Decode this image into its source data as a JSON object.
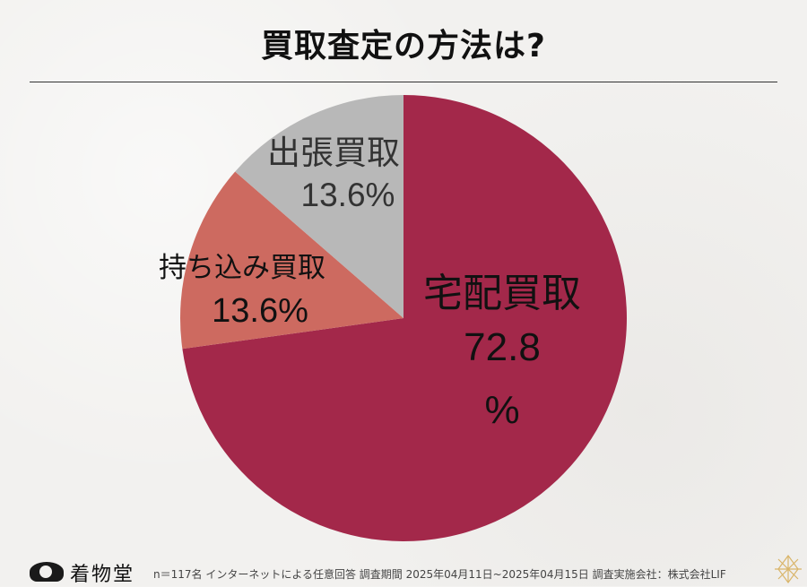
{
  "title": "買取査定の方法は?",
  "chart_data": {
    "type": "pie",
    "slices": [
      {
        "label": "宅配買取",
        "value": 72.8,
        "value_text": "72.8",
        "unit_text": "%",
        "color": "#a3284a",
        "text_color": "#111111"
      },
      {
        "label": "持ち込み買取",
        "value": 13.6,
        "value_text": "13.6%",
        "color": "#cd6a60",
        "text_color": "#111111"
      },
      {
        "label": "出張買取",
        "value": 13.6,
        "value_text": "13.6%",
        "color": "#b8b8b8",
        "text_color": "#333333"
      }
    ]
  },
  "footer": {
    "brand": "着物堂",
    "note": "n＝117名 インターネットによる任意回答 調査期間 2025年04月11日~2025年04月15日 調査実施会社：株式会社LIF"
  }
}
